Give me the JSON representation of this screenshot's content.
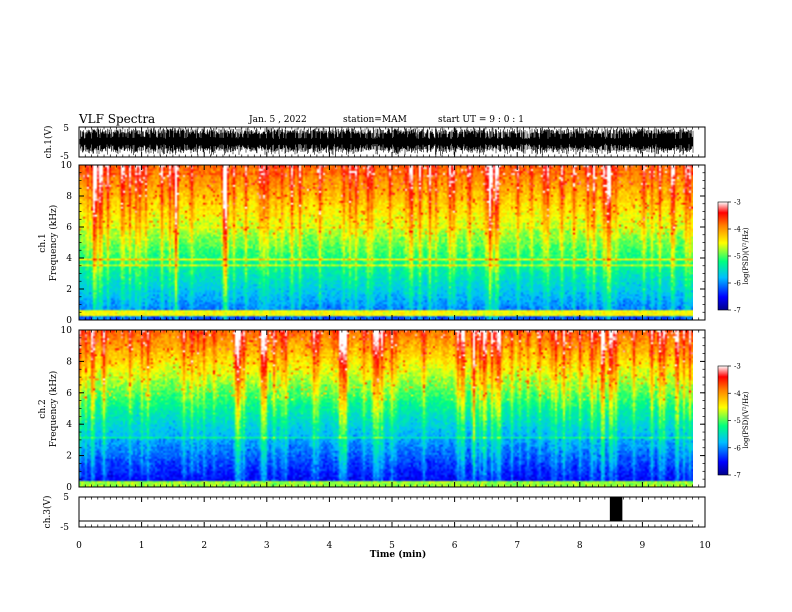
{
  "header": {
    "title": "VLF Spectra",
    "date": "Jan. 5 , 2022",
    "station": "station=MAM",
    "start": "start UT = 9 : 0 : 1"
  },
  "chart_data": [
    {
      "type": "line",
      "panel": "ch1-waveform",
      "ylabel": "ch.1(V)",
      "ylim": [
        -5,
        5
      ],
      "yticks": [
        "5",
        "-5"
      ],
      "xlim": [
        0,
        10
      ],
      "description_values": "dense broadband waveform, amplitude spanning most of ±5 V"
    },
    {
      "type": "heatmap",
      "panel": "ch1-spectrogram",
      "ylabel_line1": "ch.1",
      "ylabel_line2": "Frequency (kHz)",
      "ylim": [
        0,
        10
      ],
      "yticks": [
        "0",
        "2",
        "4",
        "6",
        "8",
        "10"
      ],
      "xlim": [
        0,
        10
      ],
      "colorbar": {
        "label": "log(PSD)(V²/Hz)",
        "range": [
          -7,
          -3
        ],
        "ticks": [
          "-3",
          "-4",
          "-5",
          "-6",
          "-7"
        ],
        "colormap": [
          "#00008b",
          "#0000ff",
          "#00bfff",
          "#00ff7f",
          "#ffff00",
          "#ff8000",
          "#ff0000",
          "#ffffff"
        ]
      }
    },
    {
      "type": "heatmap",
      "panel": "ch2-spectrogram",
      "ylabel_line1": "ch.2",
      "ylabel_line2": "Frequency (kHz)",
      "ylim": [
        0,
        10
      ],
      "yticks": [
        "0",
        "2",
        "4",
        "6",
        "8",
        "10"
      ],
      "xlim": [
        0,
        10
      ],
      "colorbar": {
        "label": "log(PSD)(V²/Hz)",
        "range": [
          -7,
          -3
        ],
        "ticks": [
          "-3",
          "-4",
          "-5",
          "-6",
          "-7"
        ]
      }
    },
    {
      "type": "line",
      "panel": "ch3-waveform",
      "ylabel": "ch.3(V)",
      "ylim": [
        -5,
        5
      ],
      "yticks": [
        "5",
        "-5"
      ],
      "xlim": [
        0,
        10
      ],
      "xlabel": "Time (min)",
      "xticks": [
        "0",
        "1",
        "2",
        "3",
        "4",
        "5",
        "6",
        "7",
        "8",
        "9",
        "10"
      ],
      "baseline_value": -3,
      "pulse": {
        "x_start": 8.48,
        "x_end": 8.68,
        "value": 5
      }
    }
  ]
}
